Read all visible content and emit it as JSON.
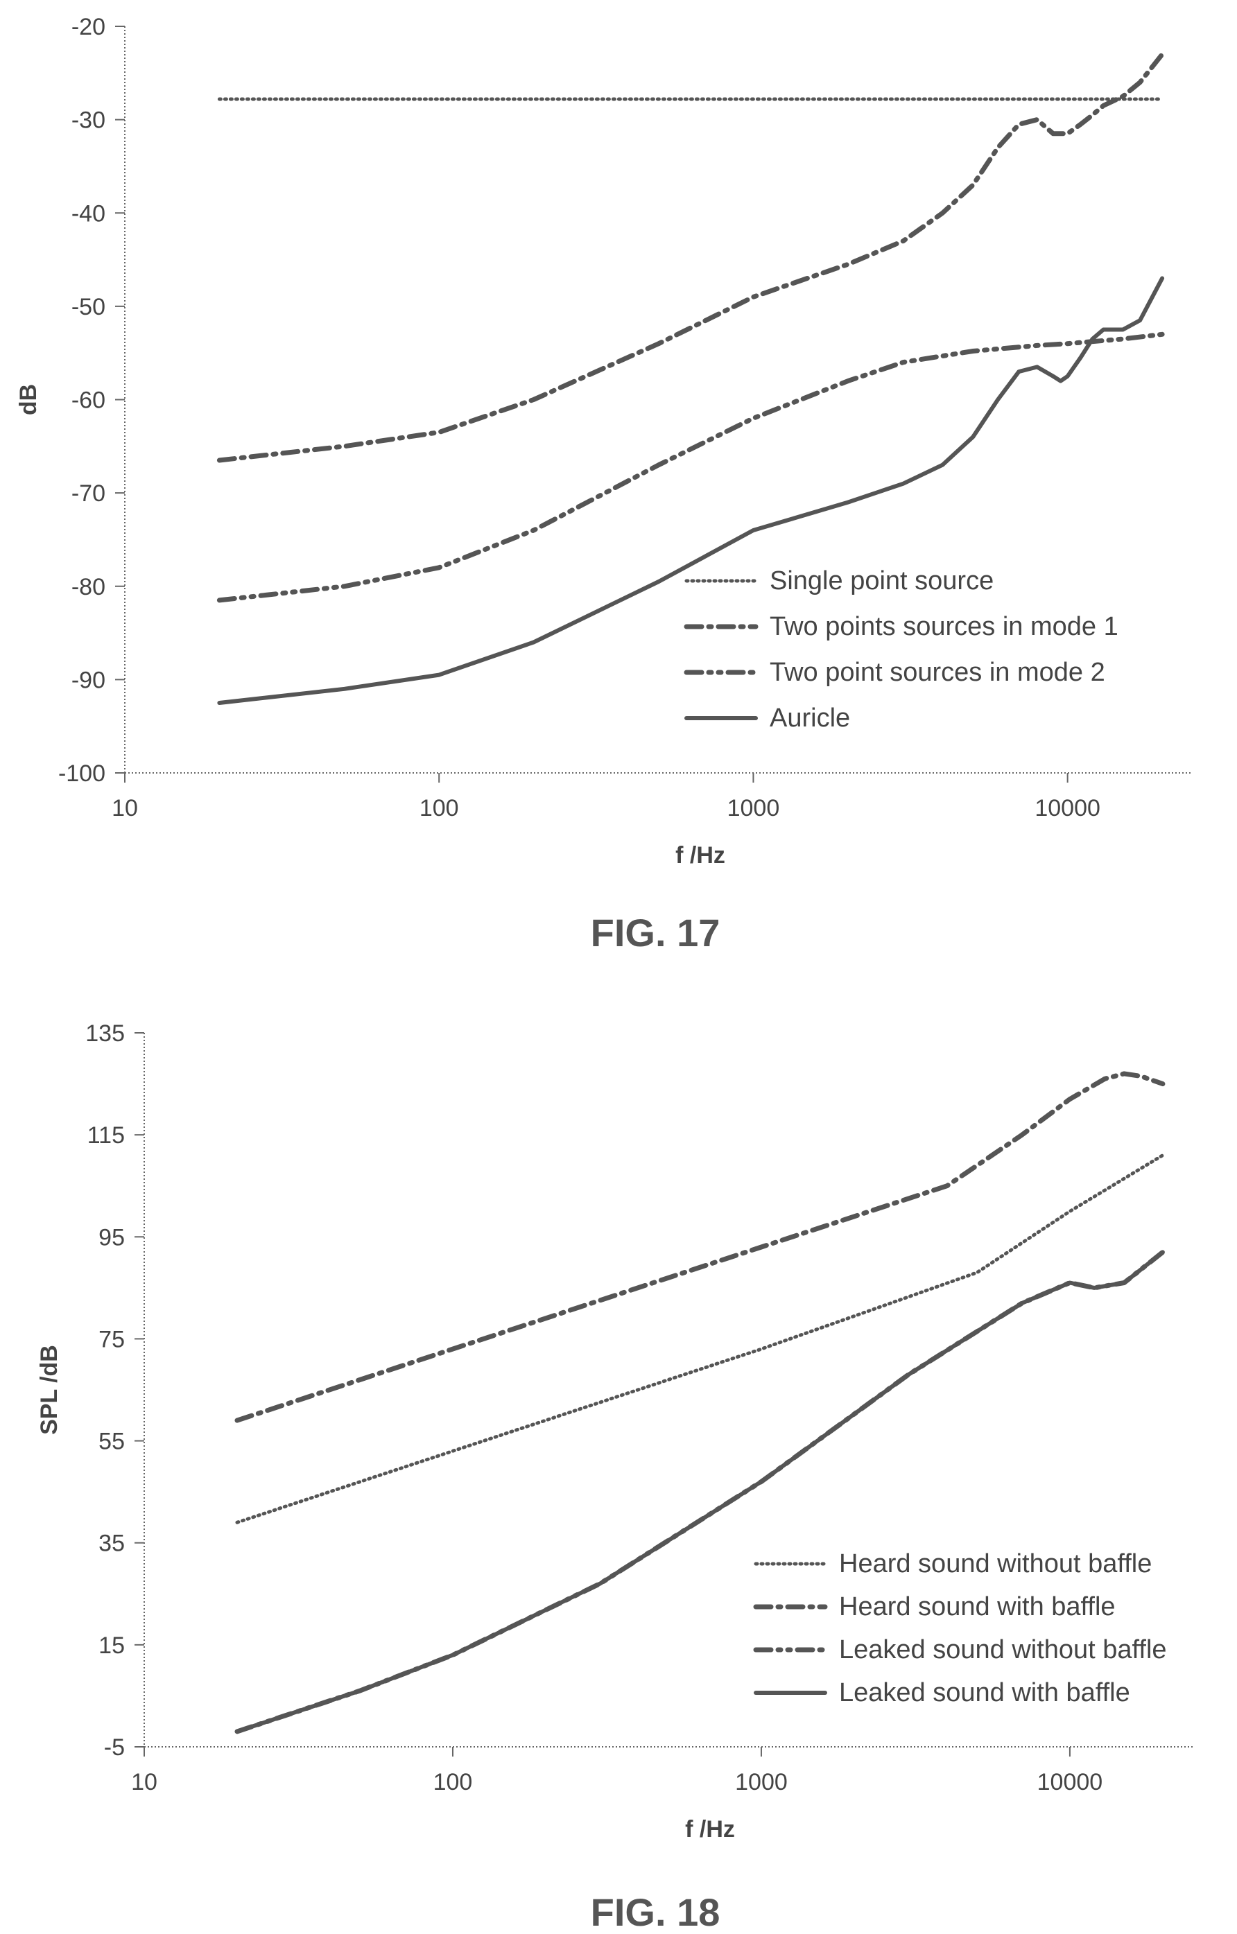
{
  "chart_data": [
    {
      "type": "line",
      "xscale": "log",
      "xlabel": "f /Hz",
      "ylabel": "dB",
      "xlim": [
        10,
        25000
      ],
      "ylim": [
        -100,
        -20
      ],
      "xticks": [
        "10",
        "100",
        "1000",
        "10000"
      ],
      "yticks": [
        "-20",
        "-30",
        "-40",
        "-50",
        "-60",
        "-70",
        "-80",
        "-90",
        "-100"
      ],
      "grid": false,
      "legend_position": "bottom-right",
      "caption": "FIG. 17",
      "series": [
        {
          "name": "Single point source",
          "style": "dotted",
          "x": [
            20,
            100,
            1000,
            10000,
            20000
          ],
          "y": [
            -27.8,
            -27.8,
            -27.8,
            -27.8,
            -27.8
          ]
        },
        {
          "name": "Two points sources in mode 1",
          "style": "dash-dot",
          "x": [
            20,
            50,
            100,
            200,
            500,
            1000,
            2000,
            3000,
            4000,
            5000,
            6000,
            7000,
            8000,
            9000,
            10000,
            11000,
            12000,
            13000,
            15000,
            17000,
            20000
          ],
          "y": [
            -66.5,
            -65,
            -63.5,
            -60,
            -54,
            -49,
            -45.5,
            -43,
            -40,
            -37,
            -33,
            -30.5,
            -30,
            -31.5,
            -31.5,
            -30.5,
            -29.5,
            -28.5,
            -27.5,
            -26,
            -23
          ]
        },
        {
          "name": "Two point sources in mode 2",
          "style": "dash-dot-dot",
          "x": [
            20,
            50,
            100,
            200,
            500,
            1000,
            2000,
            3000,
            5000,
            8000,
            10000,
            15000,
            20000
          ],
          "y": [
            -81.5,
            -80,
            -78,
            -74,
            -67,
            -62,
            -58,
            -56,
            -54.8,
            -54.2,
            -54,
            -53.5,
            -53
          ]
        },
        {
          "name": "Auricle",
          "style": "solid",
          "x": [
            20,
            50,
            100,
            200,
            500,
            1000,
            2000,
            3000,
            4000,
            5000,
            6000,
            7000,
            8000,
            9000,
            9500,
            10000,
            11000,
            12000,
            13000,
            15000,
            17000,
            20000
          ],
          "y": [
            -92.5,
            -91,
            -89.5,
            -86,
            -79.5,
            -74,
            -71,
            -69,
            -67,
            -64,
            -60,
            -57,
            -56.5,
            -57.5,
            -58,
            -57.5,
            -55.5,
            -53.5,
            -52.5,
            -52.5,
            -51.5,
            -47
          ]
        }
      ]
    },
    {
      "type": "line",
      "xscale": "log",
      "xlabel": "f /Hz",
      "ylabel": "SPL /dB",
      "xlim": [
        10,
        25000
      ],
      "ylim": [
        -5,
        135
      ],
      "xticks": [
        "10",
        "100",
        "1000",
        "10000"
      ],
      "yticks": [
        "135",
        "115",
        "95",
        "75",
        "55",
        "35",
        "15",
        "-5"
      ],
      "grid": false,
      "legend_position": "bottom-right",
      "caption": "FIG. 18",
      "series": [
        {
          "name": "Heard sound without baffle",
          "style": "dotted",
          "x": [
            20,
            100,
            1000,
            5000,
            10000,
            20000
          ],
          "y": [
            39,
            53,
            73,
            88,
            100,
            111
          ]
        },
        {
          "name": "Heard sound with baffle",
          "style": "dash-dot",
          "x": [
            20,
            100,
            1000,
            4000,
            7000,
            10000,
            13000,
            15000,
            17000,
            20000
          ],
          "y": [
            59,
            73,
            93,
            105,
            115,
            122,
            126,
            127,
            126.5,
            125
          ]
        },
        {
          "name": "Leaked sound without baffle",
          "style": "dash-dot-dot",
          "x": [
            20,
            50,
            100,
            300,
            1000,
            3000,
            7000,
            10000,
            12000,
            15000,
            20000
          ],
          "y": [
            -2,
            6,
            13,
            27,
            47,
            68,
            82,
            86,
            85,
            86,
            92
          ]
        },
        {
          "name": "Leaked sound with baffle",
          "style": "solid",
          "x": [
            20,
            50,
            100,
            300,
            1000,
            3000,
            7000,
            10000,
            12000,
            15000,
            20000
          ],
          "y": [
            -2,
            6,
            13,
            27,
            47,
            68,
            82,
            86,
            85,
            86,
            92
          ]
        }
      ]
    }
  ]
}
